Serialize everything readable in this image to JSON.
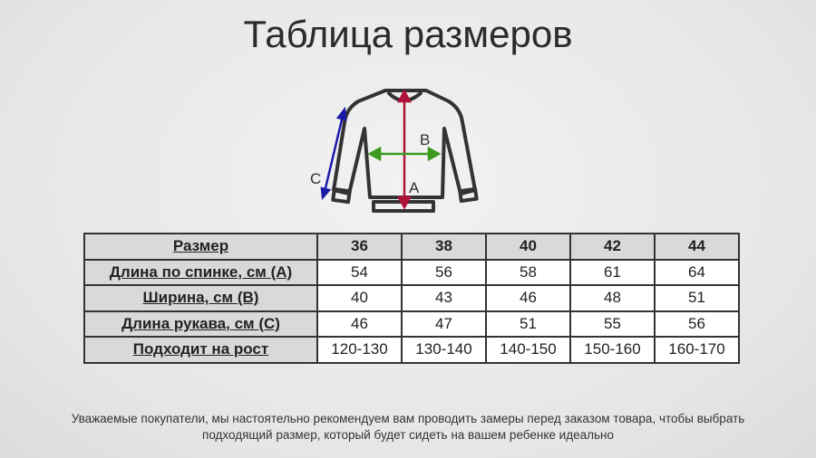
{
  "title": "Таблица размеров",
  "diagram": {
    "labels": {
      "a": "A",
      "b": "B",
      "c": "C"
    },
    "colors": {
      "a": "#b0123a",
      "b": "#3a9a1e",
      "c": "#1a1aa8",
      "outline": "#333333"
    }
  },
  "table": {
    "header": {
      "label": "Размер",
      "sizes": [
        "36",
        "38",
        "40",
        "42",
        "44"
      ]
    },
    "rows": [
      {
        "label": "Длина по спинке, см (A)",
        "values": [
          "54",
          "56",
          "58",
          "61",
          "64"
        ]
      },
      {
        "label": "Ширина, см (B)",
        "values": [
          "40",
          "43",
          "46",
          "48",
          "51"
        ]
      },
      {
        "label": "Длина рукава, см (C)",
        "values": [
          "46",
          "47",
          "51",
          "55",
          "56"
        ]
      },
      {
        "label": "Подходит на рост",
        "values": [
          "120-130",
          "130-140",
          "140-150",
          "150-160",
          "160-170"
        ]
      }
    ]
  },
  "footer": {
    "line1": "Уважаемые покупатели, мы настоятельно рекомендуем вам проводить замеры перед заказом товара, чтобы выбрать",
    "line2": "подходящий размер, который будет сидеть на вашем ребенке идеально"
  }
}
